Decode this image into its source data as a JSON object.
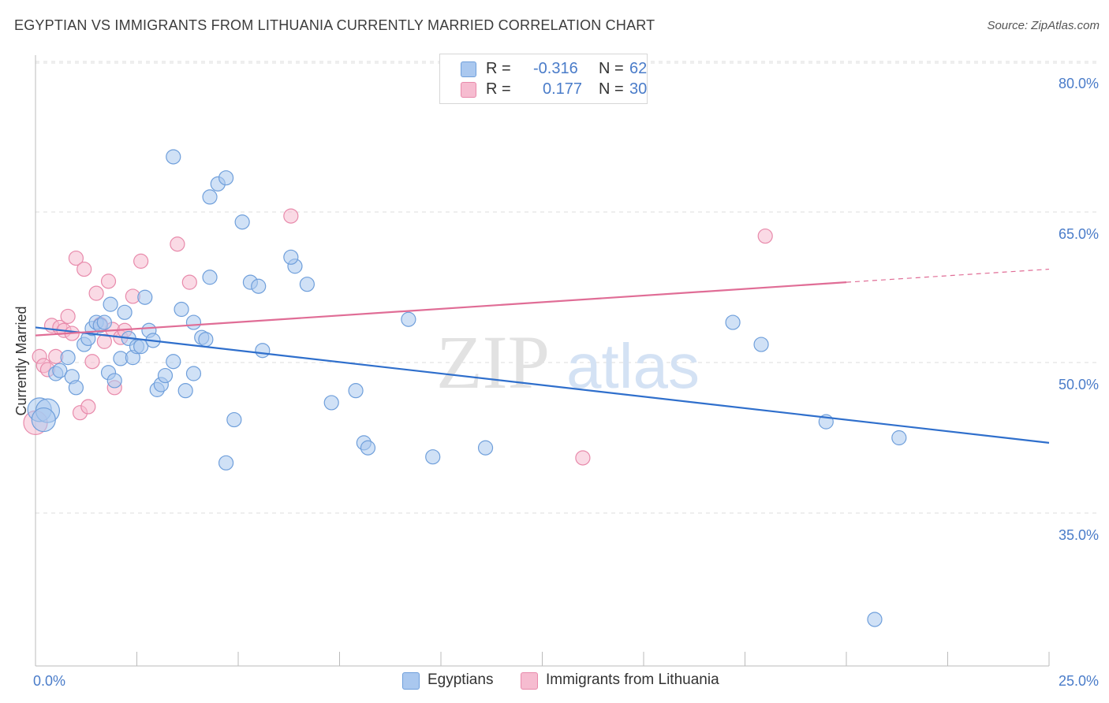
{
  "header": {
    "title": "EGYPTIAN VS IMMIGRANTS FROM LITHUANIA CURRENTLY MARRIED CORRELATION CHART",
    "source": "Source: ZipAtlas.com"
  },
  "legend": {
    "rows": [
      {
        "r_label": "R =",
        "r_value": "-0.316",
        "n_label": "N =",
        "n_value": "62"
      },
      {
        "r_label": "R =",
        "r_value": "0.177",
        "n_label": "N =",
        "n_value": "30"
      }
    ]
  },
  "watermark": {
    "zip": "ZIP",
    "atlas": "atlas"
  },
  "colors": {
    "blue_fill": "#aac8ef",
    "blue_stroke": "#6f9fdb",
    "blue_line": "#2f6fcc",
    "pink_fill": "#f6bcd0",
    "pink_stroke": "#e88aab",
    "pink_line": "#e06d96",
    "tick_text": "#4a7cc9",
    "grid": "#dddddd"
  },
  "chart_data": {
    "type": "scatter",
    "ylabel": "Currently Married",
    "xlim": [
      0,
      25
    ],
    "ylim": [
      22,
      82
    ],
    "y_ticks": [
      35,
      50,
      65,
      80
    ],
    "y_tick_labels": [
      "35.0%",
      "50.0%",
      "65.0%",
      "80.0%"
    ],
    "x_tick_labels": [
      "0.0%",
      "25.0%"
    ],
    "grid": "horizontal dashed",
    "legend_placement": "top-center",
    "series": [
      {
        "name": "Egyptians",
        "points": [
          [
            0.1,
            45.3
          ],
          [
            0.3,
            45.2
          ],
          [
            0.2,
            44.3
          ],
          [
            0.5,
            48.9
          ],
          [
            0.6,
            49.2
          ],
          [
            0.8,
            50.5
          ],
          [
            0.9,
            48.6
          ],
          [
            1.0,
            47.5
          ],
          [
            1.2,
            51.8
          ],
          [
            1.3,
            52.4
          ],
          [
            1.4,
            53.4
          ],
          [
            1.5,
            54.0
          ],
          [
            1.6,
            53.7
          ],
          [
            1.7,
            54.0
          ],
          [
            1.8,
            49.0
          ],
          [
            1.85,
            55.8
          ],
          [
            1.95,
            48.2
          ],
          [
            2.1,
            50.4
          ],
          [
            2.2,
            55.0
          ],
          [
            2.3,
            52.4
          ],
          [
            2.4,
            50.5
          ],
          [
            2.5,
            51.6
          ],
          [
            2.6,
            51.6
          ],
          [
            2.7,
            56.5
          ],
          [
            2.8,
            53.2
          ],
          [
            2.9,
            52.2
          ],
          [
            3.0,
            47.3
          ],
          [
            3.1,
            47.8
          ],
          [
            3.2,
            48.7
          ],
          [
            3.4,
            50.1
          ],
          [
            3.6,
            55.3
          ],
          [
            3.7,
            47.2
          ],
          [
            3.9,
            48.9
          ],
          [
            4.1,
            52.5
          ],
          [
            4.2,
            52.3
          ],
          [
            4.3,
            66.5
          ],
          [
            4.5,
            67.8
          ],
          [
            4.7,
            68.4
          ],
          [
            3.4,
            70.5
          ],
          [
            4.9,
            44.3
          ],
          [
            4.7,
            40.0
          ],
          [
            5.1,
            64.0
          ],
          [
            5.3,
            58.0
          ],
          [
            5.5,
            57.6
          ],
          [
            5.6,
            51.2
          ],
          [
            6.4,
            59.6
          ],
          [
            6.7,
            57.8
          ],
          [
            7.3,
            46.0
          ],
          [
            7.9,
            47.2
          ],
          [
            8.1,
            42.0
          ],
          [
            8.2,
            41.5
          ],
          [
            9.2,
            54.3
          ],
          [
            9.8,
            40.6
          ],
          [
            11.1,
            41.5
          ],
          [
            17.2,
            54.0
          ],
          [
            17.9,
            51.8
          ],
          [
            19.5,
            44.1
          ],
          [
            21.3,
            42.5
          ],
          [
            20.7,
            24.4
          ],
          [
            4.3,
            58.5
          ],
          [
            6.3,
            60.5
          ],
          [
            3.9,
            54.0
          ]
        ]
      },
      {
        "name": "Immigrants from Lithuania",
        "points": [
          [
            0.0,
            44.0
          ],
          [
            0.1,
            50.6
          ],
          [
            0.2,
            49.7
          ],
          [
            0.3,
            49.3
          ],
          [
            0.4,
            53.7
          ],
          [
            0.5,
            50.6
          ],
          [
            0.6,
            53.5
          ],
          [
            0.7,
            53.2
          ],
          [
            0.8,
            54.6
          ],
          [
            0.9,
            52.9
          ],
          [
            1.0,
            60.4
          ],
          [
            1.1,
            45.0
          ],
          [
            1.2,
            59.3
          ],
          [
            1.3,
            45.6
          ],
          [
            1.4,
            50.1
          ],
          [
            1.5,
            56.9
          ],
          [
            1.6,
            53.8
          ],
          [
            1.7,
            52.1
          ],
          [
            1.8,
            58.1
          ],
          [
            1.9,
            53.3
          ],
          [
            1.95,
            47.5
          ],
          [
            2.1,
            52.5
          ],
          [
            2.2,
            53.2
          ],
          [
            2.4,
            56.6
          ],
          [
            2.6,
            60.1
          ],
          [
            3.5,
            61.8
          ],
          [
            3.8,
            58.0
          ],
          [
            6.3,
            64.6
          ],
          [
            13.5,
            40.5
          ],
          [
            18.0,
            62.6
          ]
        ]
      }
    ],
    "trend_lines": [
      {
        "series": "Egyptians",
        "x": [
          0,
          25
        ],
        "y": [
          53.5,
          42.0
        ]
      },
      {
        "series": "Immigrants from Lithuania",
        "x": [
          0,
          20,
          25
        ],
        "y": [
          52.7,
          58.0,
          59.3
        ]
      }
    ]
  }
}
